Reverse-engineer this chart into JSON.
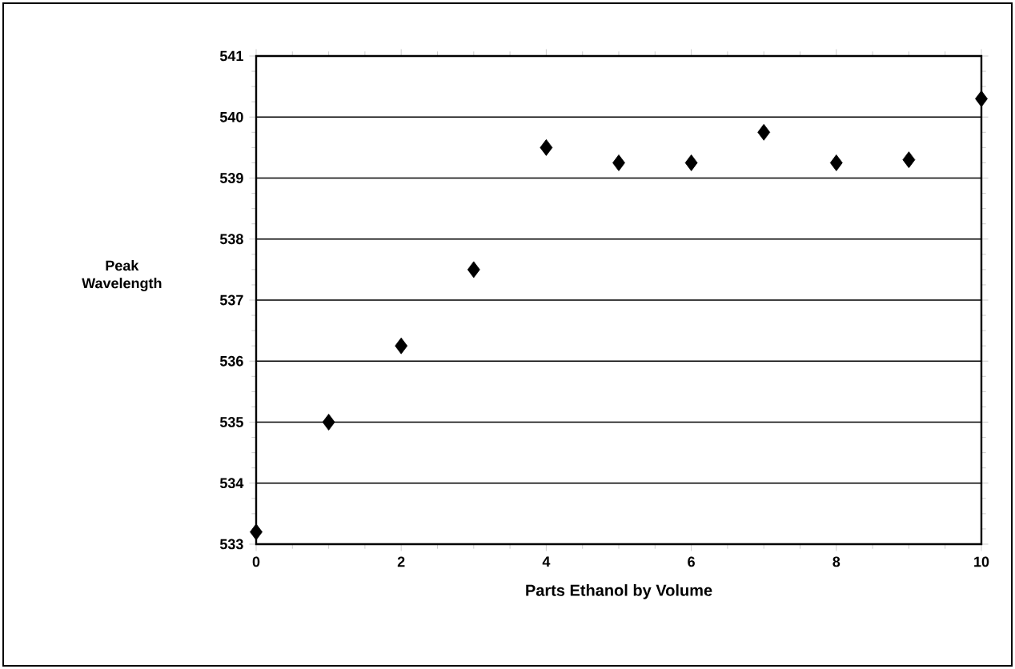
{
  "chart_data": {
    "type": "scatter",
    "xlabel": "Parts Ethanol by Volume",
    "ylabel": "Peak Wavelength",
    "x": [
      0,
      1,
      2,
      3,
      4,
      5,
      6,
      7,
      8,
      9,
      10
    ],
    "values": [
      533.2,
      535.0,
      536.25,
      537.5,
      539.5,
      539.25,
      539.25,
      539.75,
      539.25,
      539.3,
      540.3
    ],
    "color": "#000000",
    "marker": "diamond",
    "grid": "y",
    "xlim": [
      0,
      10
    ],
    "xticks": [
      0,
      2,
      4,
      6,
      8,
      10
    ],
    "ylim": [
      533,
      541
    ],
    "yticks": [
      533,
      534,
      535,
      536,
      537,
      538,
      539,
      540,
      541
    ]
  }
}
